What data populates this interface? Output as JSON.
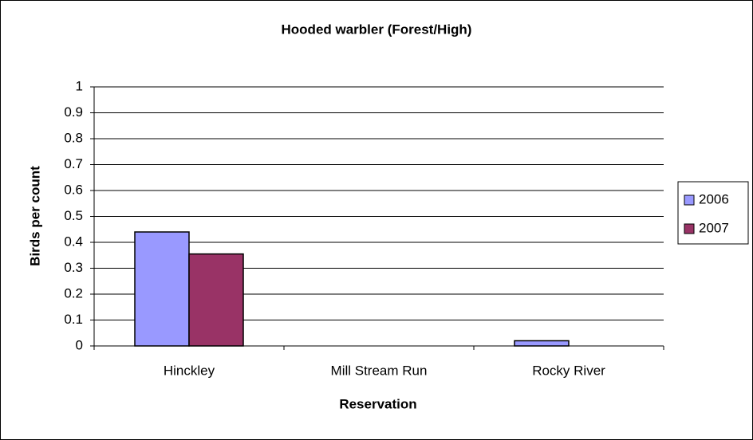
{
  "chart_data": {
    "type": "bar",
    "title": "Hooded warbler (Forest/High)",
    "x_label": "Reservation",
    "y_label": "Birds per count",
    "categories": [
      "Hinckley",
      "Mill Stream Run",
      "Rocky River"
    ],
    "series": [
      {
        "name": "2006",
        "color": "#9999ff",
        "values": [
          0.44,
          0,
          0.02
        ]
      },
      {
        "name": "2007",
        "color": "#993366",
        "values": [
          0.355,
          0,
          0
        ]
      }
    ],
    "ylim": [
      0,
      1
    ],
    "yticks": [
      0,
      0.1,
      0.2,
      0.3,
      0.4,
      0.5,
      0.6,
      0.7,
      0.8,
      0.9,
      1
    ],
    "grid": true,
    "legend": "right"
  }
}
